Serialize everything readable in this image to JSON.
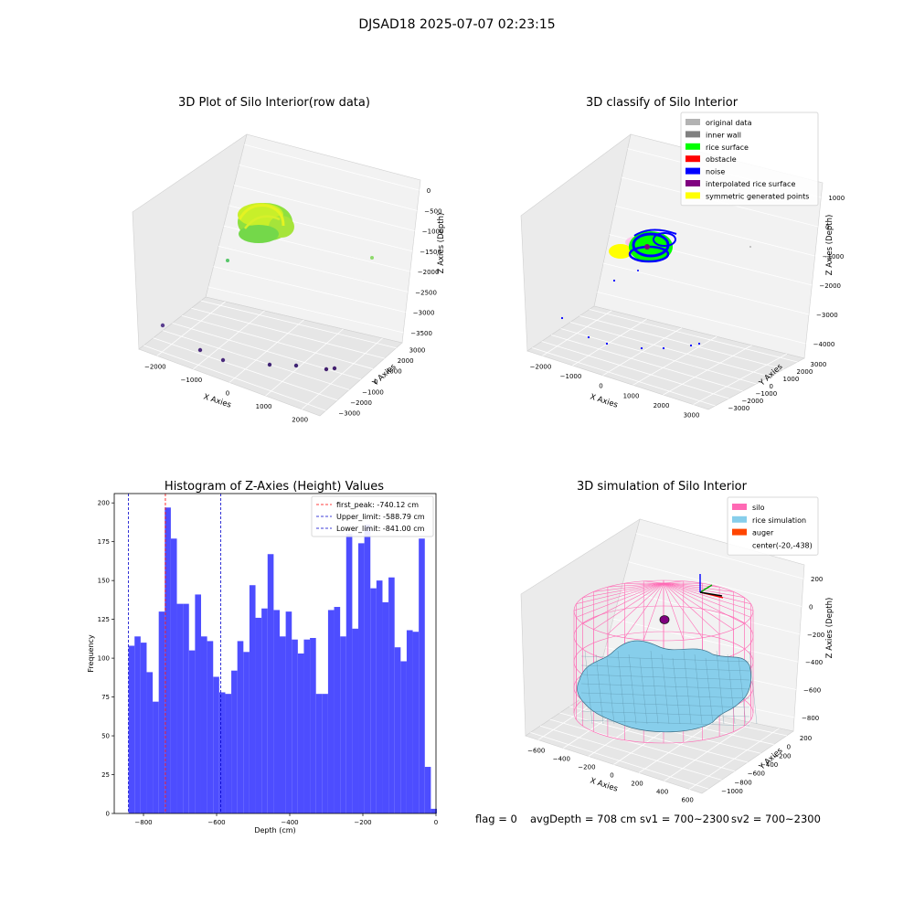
{
  "figure": {
    "suptitle": "DJSAD18 2025-07-07 02:23:15"
  },
  "colors": {
    "hist_bar": "#4d4dff",
    "peak_line": "#ff0000",
    "limit_line": "#0000cc",
    "silo": "#ff69b4",
    "rice": "#87ceeb",
    "auger": "#ff4500",
    "original": "#b3b3b3",
    "inner_wall": "#808080",
    "rice_surface": "#00ff00",
    "obstacle": "#ff0000",
    "noise": "#0000ff",
    "interp": "#800080",
    "symmetric": "#ffff00"
  },
  "panel_raw": {
    "title": "3D Plot of Silo Interior(row data)",
    "xlabel": "X Axies",
    "ylabel": "Y Axies",
    "zlabel": "Z Axies (Depth)",
    "xticks": [
      "−2000",
      "−1000",
      "0",
      "1000",
      "2000"
    ],
    "yticks": [
      "−3000",
      "−2000",
      "−1000",
      "0",
      "1000",
      "2000",
      "3000"
    ],
    "zticks": [
      "0",
      "−500",
      "−1000",
      "−1500",
      "−2000",
      "−2500",
      "−3000",
      "−3500"
    ]
  },
  "panel_classify": {
    "title": "3D classify of Silo Interior",
    "xlabel": "X Axies",
    "ylabel": "Y Axies",
    "zlabel": "Z Axies (Depth)",
    "xticks": [
      "−2000",
      "−1000",
      "0",
      "1000",
      "2000",
      "3000"
    ],
    "yticks": [
      "−3000",
      "−2000",
      "−1000",
      "0",
      "1000",
      "2000",
      "3000"
    ],
    "zticks": [
      "1000",
      "0",
      "−1000",
      "−2000",
      "−3000",
      "−4000"
    ],
    "legend": [
      {
        "label": "original data",
        "color": "#b3b3b3"
      },
      {
        "label": "inner wall",
        "color": "#808080"
      },
      {
        "label": "rice surface",
        "color": "#00ff00"
      },
      {
        "label": "obstacle",
        "color": "#ff0000"
      },
      {
        "label": "noise",
        "color": "#0000ff"
      },
      {
        "label": "interpolated rice surface",
        "color": "#800080"
      },
      {
        "label": "symmetric generated points",
        "color": "#ffff00"
      }
    ]
  },
  "panel_sim": {
    "title": "3D simulation of Silo Interior",
    "xlabel": "X Axies",
    "ylabel": "Y Axies",
    "zlabel": "Z Axies (Depth)",
    "xticks": [
      "−600",
      "−400",
      "−200",
      "0",
      "200",
      "400",
      "600"
    ],
    "yticks": [
      "−1000",
      "−800",
      "−600",
      "−400",
      "−200",
      "0",
      "200"
    ],
    "zticks": [
      "200",
      "0",
      "−200",
      "−400",
      "−600",
      "−800"
    ],
    "legend": [
      {
        "label": "silo",
        "color": "#ff69b4"
      },
      {
        "label": "rice simulation",
        "color": "#87ceeb"
      },
      {
        "label": "auger",
        "color": "#ff4500"
      },
      {
        "label": "center(-20,-438)",
        "color": ""
      }
    ]
  },
  "footer": {
    "flag": "flag = 0",
    "avg": "avgDepth = 708 cm",
    "sv1": "sv1 = 700~2300",
    "sv2": "sv2 = 700~2300"
  },
  "chart_data": [
    {
      "type": "bar",
      "title": "Histogram of Z-Axies (Height) Values",
      "xlabel": "Depth (cm)",
      "ylabel": "Frequency",
      "xlim": [
        -880,
        0
      ],
      "ylim": [
        0,
        206
      ],
      "xticks": [
        -800,
        -600,
        -400,
        -200,
        0
      ],
      "yticks": [
        0,
        25,
        50,
        75,
        100,
        125,
        150,
        175,
        200
      ],
      "bin_start": -841,
      "bin_width": 16.54,
      "values": [
        108,
        114,
        110,
        91,
        72,
        130,
        197,
        177,
        135,
        135,
        105,
        141,
        114,
        111,
        88,
        78,
        77,
        92,
        111,
        104,
        147,
        126,
        132,
        167,
        131,
        114,
        130,
        112,
        103,
        112,
        113,
        77,
        77,
        131,
        133,
        114,
        180,
        119,
        174,
        186,
        145,
        150,
        136,
        152,
        107,
        98,
        118,
        117,
        177,
        30,
        3
      ],
      "lines": [
        {
          "name": "first_peak: -740.12 cm",
          "x": -740.12,
          "color": "#ff0000"
        },
        {
          "name": "Upper_limit: -588.79 cm",
          "x": -588.79,
          "color": "#0000cc"
        },
        {
          "name": "Lower_limit: -841.00 cm",
          "x": -841.0,
          "color": "#0000cc"
        }
      ]
    }
  ]
}
